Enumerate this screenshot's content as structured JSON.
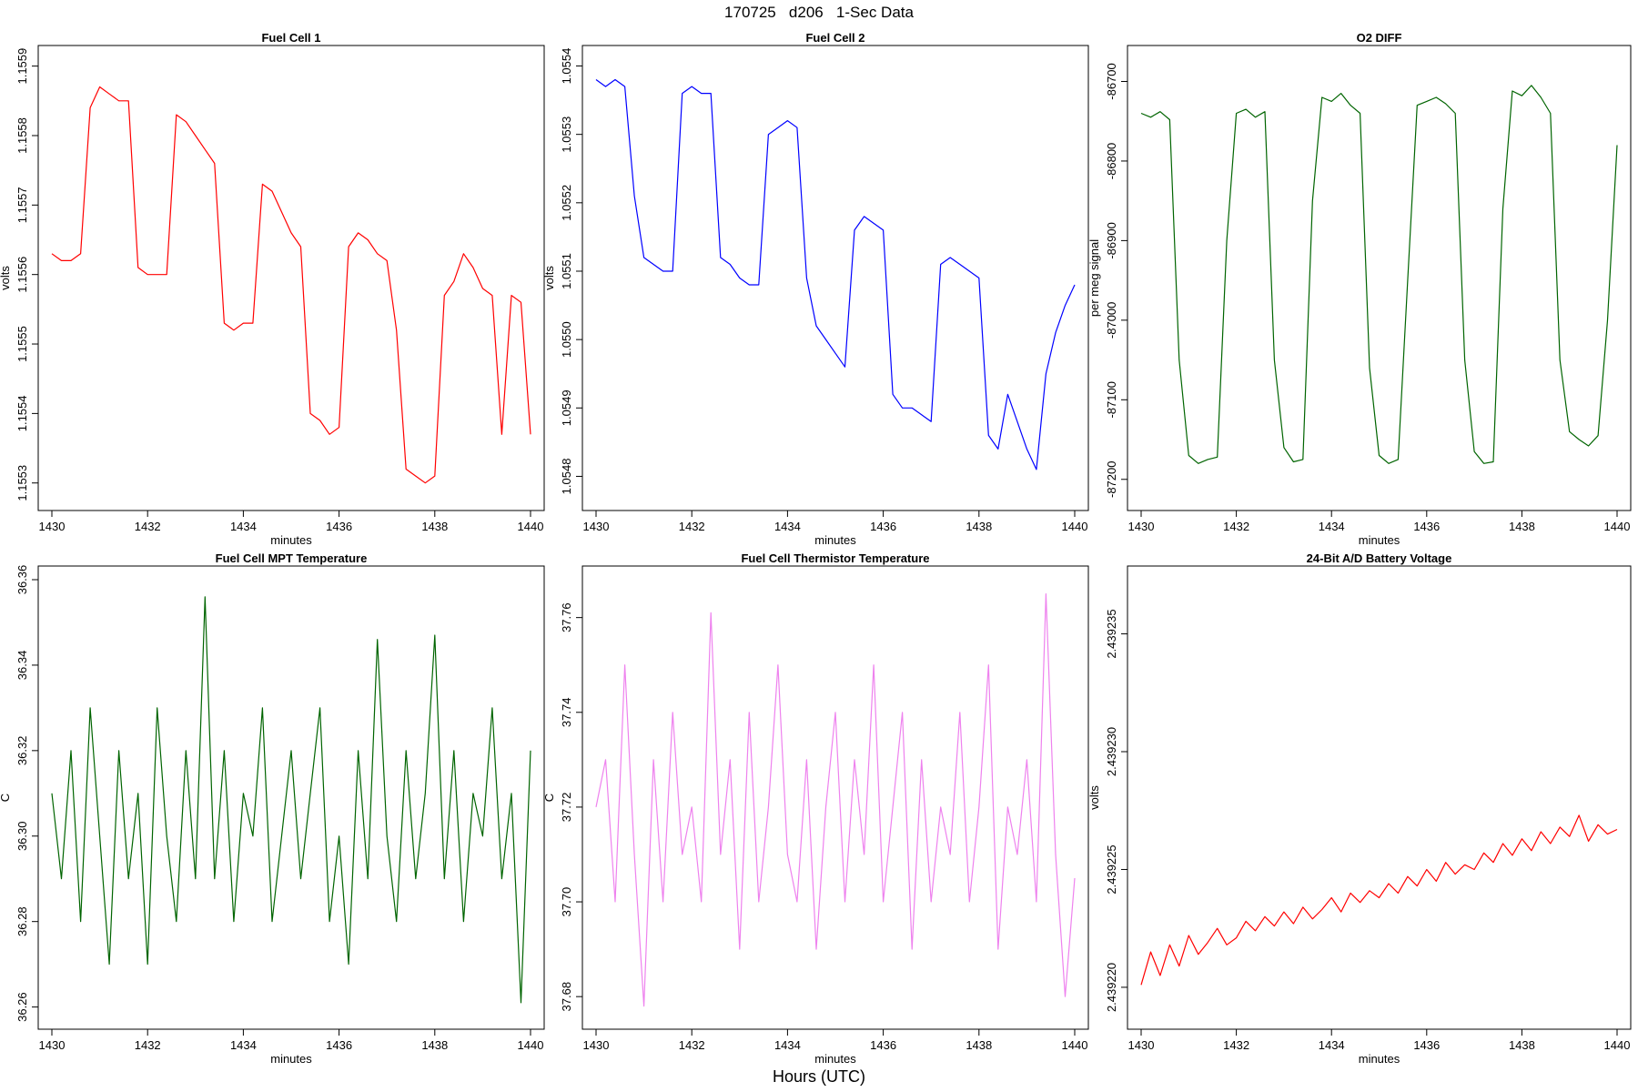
{
  "page_title": "170725   d206   1-Sec Data",
  "global_xlabel": "Hours (UTC)",
  "chart_data": [
    {
      "id": "fc1",
      "type": "line",
      "title": "Fuel Cell 1",
      "xlabel": "minutes",
      "ylabel": "volts",
      "xlim": [
        1430,
        1440
      ],
      "ylim": [
        1.15528,
        1.15591
      ],
      "xticks": [
        1430,
        1432,
        1434,
        1436,
        1438,
        1440
      ],
      "yticks": [
        1.1553,
        1.1554,
        1.1555,
        1.1556,
        1.1557,
        1.1558,
        1.1559
      ],
      "ytick_labels": [
        "1.1553",
        "1.1554",
        "1.1555",
        "1.1556",
        "1.1557",
        "1.1558",
        "1.1559"
      ],
      "color": "#ff0000",
      "series": [
        {
          "name": "Fuel Cell 1",
          "x": [
            1430.0,
            1430.2,
            1430.4,
            1430.6,
            1430.8,
            1431.0,
            1431.2,
            1431.4,
            1431.6,
            1431.8,
            1432.0,
            1432.2,
            1432.4,
            1432.6,
            1432.8,
            1433.0,
            1433.2,
            1433.4,
            1433.6,
            1433.8,
            1434.0,
            1434.2,
            1434.4,
            1434.6,
            1434.8,
            1435.0,
            1435.2,
            1435.4,
            1435.6,
            1435.8,
            1436.0,
            1436.2,
            1436.4,
            1436.6,
            1436.8,
            1437.0,
            1437.2,
            1437.4,
            1437.6,
            1437.8,
            1438.0,
            1438.2,
            1438.4,
            1438.6,
            1438.8,
            1439.0,
            1439.2,
            1439.4,
            1439.6,
            1439.8,
            1440.0
          ],
          "y": [
            1.15563,
            1.15562,
            1.15562,
            1.15563,
            1.15584,
            1.15587,
            1.15586,
            1.15585,
            1.15585,
            1.15561,
            1.1556,
            1.1556,
            1.1556,
            1.15583,
            1.15582,
            1.1558,
            1.15578,
            1.15576,
            1.15553,
            1.15552,
            1.15553,
            1.15553,
            1.15573,
            1.15572,
            1.15569,
            1.15566,
            1.15564,
            1.1554,
            1.15539,
            1.15537,
            1.15538,
            1.15564,
            1.15566,
            1.15565,
            1.15563,
            1.15562,
            1.15552,
            1.15532,
            1.15531,
            1.1553,
            1.15531,
            1.15557,
            1.15559,
            1.15563,
            1.15561,
            1.15558,
            1.15557,
            1.15537,
            1.15557,
            1.15556,
            1.15537
          ]
        }
      ]
    },
    {
      "id": "fc2",
      "type": "line",
      "title": "Fuel Cell 2",
      "xlabel": "minutes",
      "ylabel": "volts",
      "xlim": [
        1430,
        1440
      ],
      "ylim": [
        1.05477,
        1.05541
      ],
      "xticks": [
        1430,
        1432,
        1434,
        1436,
        1438,
        1440
      ],
      "yticks": [
        1.0548,
        1.0549,
        1.055,
        1.0551,
        1.0552,
        1.0553,
        1.0554
      ],
      "ytick_labels": [
        "1.0548",
        "1.0549",
        "1.0550",
        "1.0551",
        "1.0552",
        "1.0553",
        "1.0554"
      ],
      "color": "#0000ff",
      "series": [
        {
          "name": "Fuel Cell 2",
          "x": [
            1430.0,
            1430.2,
            1430.4,
            1430.6,
            1430.8,
            1431.0,
            1431.2,
            1431.4,
            1431.6,
            1431.8,
            1432.0,
            1432.2,
            1432.4,
            1432.6,
            1432.8,
            1433.0,
            1433.2,
            1433.4,
            1433.6,
            1433.8,
            1434.0,
            1434.2,
            1434.4,
            1434.6,
            1434.8,
            1435.0,
            1435.2,
            1435.4,
            1435.6,
            1435.8,
            1436.0,
            1436.2,
            1436.4,
            1436.6,
            1436.8,
            1437.0,
            1437.2,
            1437.4,
            1437.6,
            1437.8,
            1438.0,
            1438.2,
            1438.4,
            1438.6,
            1438.8,
            1439.0,
            1439.2,
            1439.4,
            1439.6,
            1439.8,
            1440.0
          ],
          "y": [
            1.05538,
            1.05537,
            1.05538,
            1.05537,
            1.05521,
            1.05512,
            1.05511,
            1.0551,
            1.0551,
            1.05536,
            1.05537,
            1.05536,
            1.05536,
            1.05512,
            1.05511,
            1.05509,
            1.05508,
            1.05508,
            1.0553,
            1.05531,
            1.05532,
            1.05531,
            1.05509,
            1.05502,
            1.055,
            1.05498,
            1.05496,
            1.05516,
            1.05518,
            1.05517,
            1.05516,
            1.05492,
            1.0549,
            1.0549,
            1.05489,
            1.05488,
            1.05511,
            1.05512,
            1.05511,
            1.0551,
            1.05509,
            1.05486,
            1.05484,
            1.05492,
            1.05488,
            1.05484,
            1.05481,
            1.05495,
            1.05501,
            1.05505,
            1.05508
          ]
        }
      ]
    },
    {
      "id": "o2",
      "type": "line",
      "title": "O2 DIFF",
      "xlabel": "minutes",
      "ylabel": "per meg signal",
      "xlim": [
        1430,
        1440
      ],
      "ylim": [
        -87222,
        -86672
      ],
      "xticks": [
        1430,
        1432,
        1434,
        1436,
        1438,
        1440
      ],
      "yticks": [
        -86700,
        -86800,
        -86900,
        -87000,
        -87100,
        -87200
      ],
      "ytick_labels": [
        "-86700",
        "-86800",
        "-86900",
        "-87000",
        "-87100",
        "-87200"
      ],
      "color": "#006400",
      "series": [
        {
          "name": "O2 DIFF",
          "x": [
            1430.0,
            1430.2,
            1430.4,
            1430.6,
            1430.8,
            1431.0,
            1431.2,
            1431.4,
            1431.6,
            1431.8,
            1432.0,
            1432.2,
            1432.4,
            1432.6,
            1432.8,
            1433.0,
            1433.2,
            1433.4,
            1433.6,
            1433.8,
            1434.0,
            1434.2,
            1434.4,
            1434.6,
            1434.8,
            1435.0,
            1435.2,
            1435.4,
            1435.6,
            1435.8,
            1436.0,
            1436.2,
            1436.4,
            1436.6,
            1436.8,
            1437.0,
            1437.2,
            1437.4,
            1437.6,
            1437.8,
            1438.0,
            1438.2,
            1438.4,
            1438.6,
            1438.8,
            1439.0,
            1439.2,
            1439.4,
            1439.6,
            1439.8,
            1440.0
          ],
          "y": [
            -86740,
            -86745,
            -86738,
            -86748,
            -87050,
            -87170,
            -87180,
            -87175,
            -87172,
            -86900,
            -86740,
            -86735,
            -86745,
            -86738,
            -87050,
            -87160,
            -87178,
            -87175,
            -86850,
            -86720,
            -86725,
            -86715,
            -86730,
            -86740,
            -87060,
            -87170,
            -87180,
            -87175,
            -86950,
            -86730,
            -86725,
            -86720,
            -86728,
            -86740,
            -87050,
            -87165,
            -87180,
            -87178,
            -86860,
            -86712,
            -86718,
            -86705,
            -86720,
            -86740,
            -87050,
            -87140,
            -87150,
            -87158,
            -87145,
            -87000,
            -86780
          ]
        }
      ]
    },
    {
      "id": "mpt",
      "type": "line",
      "title": "Fuel Cell MPT Temperature",
      "xlabel": "minutes",
      "ylabel": "C",
      "xlim": [
        1430,
        1440
      ],
      "ylim": [
        36.258,
        36.36
      ],
      "xticks": [
        1430,
        1432,
        1434,
        1436,
        1438,
        1440
      ],
      "yticks": [
        36.26,
        36.28,
        36.3,
        36.32,
        36.34,
        36.36
      ],
      "ytick_labels": [
        "36.26",
        "36.28",
        "36.30",
        "36.32",
        "36.34",
        "36.36"
      ],
      "color": "#006400",
      "series": [
        {
          "name": "MPT Temperature",
          "x": [
            1430.0,
            1430.2,
            1430.4,
            1430.6,
            1430.8,
            1431.0,
            1431.2,
            1431.4,
            1431.6,
            1431.8,
            1432.0,
            1432.2,
            1432.4,
            1432.6,
            1432.8,
            1433.0,
            1433.2,
            1433.4,
            1433.6,
            1433.8,
            1434.0,
            1434.2,
            1434.4,
            1434.6,
            1434.8,
            1435.0,
            1435.2,
            1435.4,
            1435.6,
            1435.8,
            1436.0,
            1436.2,
            1436.4,
            1436.6,
            1436.8,
            1437.0,
            1437.2,
            1437.4,
            1437.6,
            1437.8,
            1438.0,
            1438.2,
            1438.4,
            1438.6,
            1438.8,
            1439.0,
            1439.2,
            1439.4,
            1439.6,
            1439.8,
            1440.0
          ],
          "y": [
            36.31,
            36.29,
            36.32,
            36.28,
            36.33,
            36.3,
            36.27,
            36.32,
            36.29,
            36.31,
            36.27,
            36.33,
            36.3,
            36.28,
            36.32,
            36.29,
            36.356,
            36.29,
            36.32,
            36.28,
            36.31,
            36.3,
            36.33,
            36.28,
            36.3,
            36.32,
            36.29,
            36.31,
            36.33,
            36.28,
            36.3,
            36.27,
            36.32,
            36.29,
            36.346,
            36.3,
            36.28,
            36.32,
            36.29,
            36.31,
            36.347,
            36.29,
            36.32,
            36.28,
            36.31,
            36.3,
            36.33,
            36.29,
            36.31,
            36.261,
            36.32
          ]
        }
      ]
    },
    {
      "id": "therm",
      "type": "line",
      "title": "Fuel Cell Thermistor Temperature",
      "xlabel": "minutes",
      "ylabel": "C",
      "xlim": [
        1430,
        1440
      ],
      "ylim": [
        37.676,
        37.768
      ],
      "xticks": [
        1430,
        1432,
        1434,
        1436,
        1438,
        1440
      ],
      "yticks": [
        37.68,
        37.7,
        37.72,
        37.74,
        37.76
      ],
      "ytick_labels": [
        "37.68",
        "37.70",
        "37.72",
        "37.74",
        "37.76"
      ],
      "color": "#ee82ee",
      "series": [
        {
          "name": "Thermistor Temperature",
          "x": [
            1430.0,
            1430.2,
            1430.4,
            1430.6,
            1430.8,
            1431.0,
            1431.2,
            1431.4,
            1431.6,
            1431.8,
            1432.0,
            1432.2,
            1432.4,
            1432.6,
            1432.8,
            1433.0,
            1433.2,
            1433.4,
            1433.6,
            1433.8,
            1434.0,
            1434.2,
            1434.4,
            1434.6,
            1434.8,
            1435.0,
            1435.2,
            1435.4,
            1435.6,
            1435.8,
            1436.0,
            1436.2,
            1436.4,
            1436.6,
            1436.8,
            1437.0,
            1437.2,
            1437.4,
            1437.6,
            1437.8,
            1438.0,
            1438.2,
            1438.4,
            1438.6,
            1438.8,
            1439.0,
            1439.2,
            1439.4,
            1439.6,
            1439.8,
            1440.0
          ],
          "y": [
            37.72,
            37.73,
            37.7,
            37.75,
            37.71,
            37.678,
            37.73,
            37.7,
            37.74,
            37.71,
            37.72,
            37.7,
            37.761,
            37.71,
            37.73,
            37.69,
            37.74,
            37.7,
            37.72,
            37.75,
            37.71,
            37.7,
            37.73,
            37.69,
            37.72,
            37.74,
            37.7,
            37.73,
            37.71,
            37.75,
            37.7,
            37.72,
            37.74,
            37.69,
            37.73,
            37.7,
            37.72,
            37.71,
            37.74,
            37.7,
            37.72,
            37.75,
            37.69,
            37.72,
            37.71,
            37.73,
            37.7,
            37.765,
            37.71,
            37.68,
            37.705
          ]
        }
      ]
    },
    {
      "id": "batt",
      "type": "line",
      "title": "24-Bit A/D Battery Voltage",
      "xlabel": "minutes",
      "ylabel": "volts",
      "xlim": [
        1430,
        1440
      ],
      "ylim": [
        2.4392188,
        2.4392373
      ],
      "xticks": [
        1430,
        1432,
        1434,
        1436,
        1438,
        1440
      ],
      "yticks": [
        2.43922,
        2.439225,
        2.43923,
        2.439235
      ],
      "ytick_labels": [
        "2.439220",
        "2.439225",
        "2.439230",
        "2.439235"
      ],
      "color": "#ff0000",
      "series": [
        {
          "name": "Battery Voltage",
          "x": [
            1430.0,
            1430.2,
            1430.4,
            1430.6,
            1430.8,
            1431.0,
            1431.2,
            1431.4,
            1431.6,
            1431.8,
            1432.0,
            1432.2,
            1432.4,
            1432.6,
            1432.8,
            1433.0,
            1433.2,
            1433.4,
            1433.6,
            1433.8,
            1434.0,
            1434.2,
            1434.4,
            1434.6,
            1434.8,
            1435.0,
            1435.2,
            1435.4,
            1435.6,
            1435.8,
            1436.0,
            1436.2,
            1436.4,
            1436.6,
            1436.8,
            1437.0,
            1437.2,
            1437.4,
            1437.6,
            1437.8,
            1438.0,
            1438.2,
            1438.4,
            1438.6,
            1438.8,
            1439.0,
            1439.2,
            1439.4,
            1439.6,
            1439.8,
            1440.0
          ],
          "y": [
            2.4392201,
            2.4392215,
            2.4392205,
            2.4392218,
            2.4392209,
            2.4392222,
            2.4392214,
            2.4392219,
            2.4392225,
            2.4392218,
            2.4392221,
            2.4392228,
            2.4392224,
            2.439223,
            2.4392226,
            2.4392232,
            2.4392227,
            2.4392234,
            2.4392229,
            2.4392233,
            2.4392238,
            2.4392232,
            2.439224,
            2.4392236,
            2.4392241,
            2.4392238,
            2.4392244,
            2.439224,
            2.4392247,
            2.4392243,
            2.439225,
            2.4392245,
            2.4392253,
            2.4392248,
            2.4392252,
            2.439225,
            2.4392257,
            2.4392253,
            2.4392261,
            2.4392256,
            2.4392263,
            2.4392258,
            2.4392266,
            2.4392261,
            2.4392268,
            2.4392264,
            2.4392273,
            2.4392262,
            2.4392269,
            2.4392265,
            2.4392267
          ]
        }
      ]
    }
  ]
}
